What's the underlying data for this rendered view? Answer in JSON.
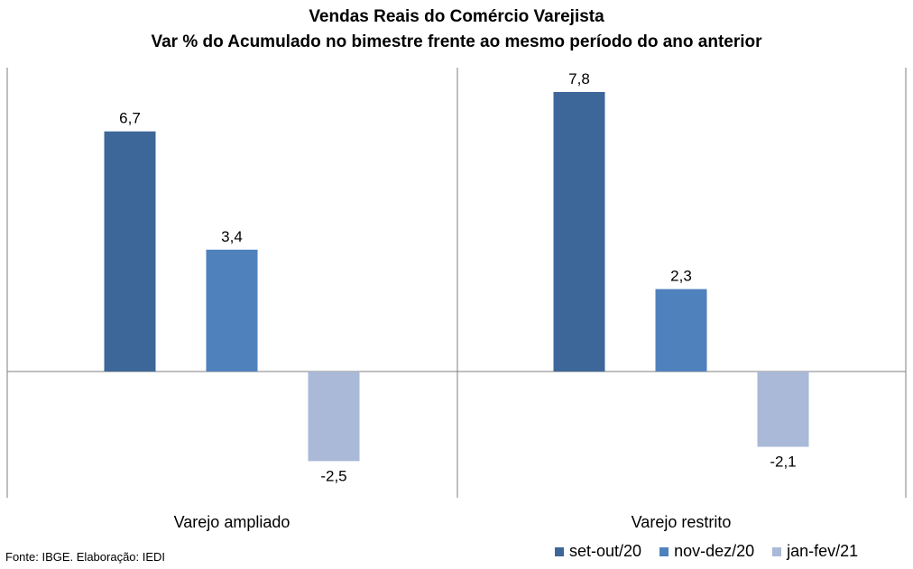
{
  "chart_data": {
    "type": "bar",
    "title": "Vendas Reais do Comércio Varejista",
    "subtitle": "Var % do Acumulado no bimestre frente ao mesmo período do ano anterior",
    "categories": [
      "Varejo ampliado",
      "Varejo restrito"
    ],
    "series": [
      {
        "name": "set-out/20",
        "values": [
          6.7,
          7.8
        ],
        "labels": [
          "6,7",
          "7,8"
        ],
        "color": "#3e6799"
      },
      {
        "name": "nov-dez/20",
        "values": [
          3.4,
          2.3
        ],
        "labels": [
          "3,4",
          "2,3"
        ],
        "color": "#4f81bd"
      },
      {
        "name": "jan-fev/21",
        "values": [
          -2.5,
          -2.1
        ],
        "labels": [
          "-2,5",
          "-2,1"
        ],
        "color": "#a9b9d7"
      }
    ],
    "ylim": [
      -3.5,
      9.0
    ],
    "grid": false,
    "legend": "bottom-right"
  },
  "source": "Fonte: IBGE. Elaboração: IEDI"
}
